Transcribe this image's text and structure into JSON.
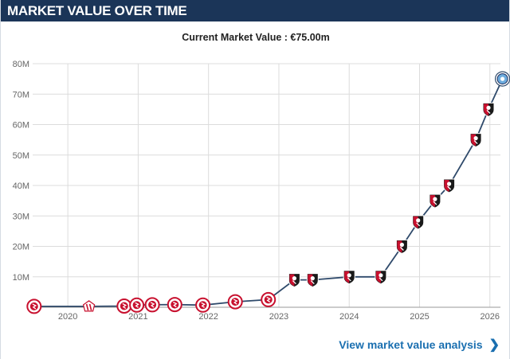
{
  "header": {
    "title": "MARKET VALUE OVER TIME"
  },
  "subtitle": "Current Market Value : €75.00m",
  "link": {
    "label": "View market value analysis",
    "icon": "chevron-right-icon"
  },
  "colors": {
    "header_bg": "#1b3558",
    "line": "#2f4a6b",
    "grid": "#dcdcdc",
    "link": "#1a6fb0",
    "badge_red": "#c8102e",
    "badge_black": "#1a1a1a",
    "badge_blue": "#6cabdd"
  },
  "chart_data": {
    "type": "line",
    "title": "",
    "xlabel": "",
    "ylabel": "",
    "ylim": [
      0,
      80
    ],
    "xlim": [
      2019.5,
      2026.15
    ],
    "grid": true,
    "y_ticks": [
      10,
      20,
      30,
      40,
      50,
      60,
      70,
      80
    ],
    "y_tick_labels": [
      "10M",
      "20M",
      "30M",
      "40M",
      "50M",
      "60M",
      "70M",
      "80M"
    ],
    "x_ticks": [
      2020,
      2021,
      2022,
      2023,
      2024,
      2025,
      2026
    ],
    "x_tick_labels": [
      "2020",
      "2021",
      "2022",
      "2023",
      "2024",
      "2025",
      "2026"
    ],
    "series": [
      {
        "unit": "M €",
        "points": [
          {
            "x": 2019.52,
            "y": 0.3,
            "club": "bournemouth"
          },
          {
            "x": 2020.3,
            "y": 0.3,
            "club": "sunderland"
          },
          {
            "x": 2020.8,
            "y": 0.4,
            "club": "bournemouth"
          },
          {
            "x": 2020.98,
            "y": 0.7,
            "club": "bournemouth"
          },
          {
            "x": 2021.2,
            "y": 0.8,
            "club": "bournemouth"
          },
          {
            "x": 2021.52,
            "y": 0.9,
            "club": "bournemouth"
          },
          {
            "x": 2021.92,
            "y": 0.7,
            "club": "bournemouth"
          },
          {
            "x": 2022.38,
            "y": 1.8,
            "club": "bournemouth"
          },
          {
            "x": 2022.85,
            "y": 2.5,
            "club": "bournemouth"
          },
          {
            "x": 2023.22,
            "y": 9.0,
            "club": "bournemouth"
          },
          {
            "x": 2023.48,
            "y": 9.0,
            "club": "bournemouth"
          },
          {
            "x": 2024.0,
            "y": 10.0,
            "club": "bournemouth"
          },
          {
            "x": 2024.45,
            "y": 10.0,
            "club": "bournemouth"
          },
          {
            "x": 2024.75,
            "y": 20.0,
            "club": "bournemouth"
          },
          {
            "x": 2024.98,
            "y": 28.0,
            "club": "bournemouth"
          },
          {
            "x": 2025.22,
            "y": 35.0,
            "club": "bournemouth"
          },
          {
            "x": 2025.42,
            "y": 40.0,
            "club": "bournemouth"
          },
          {
            "x": 2025.8,
            "y": 55.0,
            "club": "bournemouth"
          },
          {
            "x": 2025.98,
            "y": 65.0,
            "club": "bournemouth"
          },
          {
            "x": 2026.18,
            "y": 75.0,
            "club": "man-city"
          }
        ]
      }
    ]
  }
}
